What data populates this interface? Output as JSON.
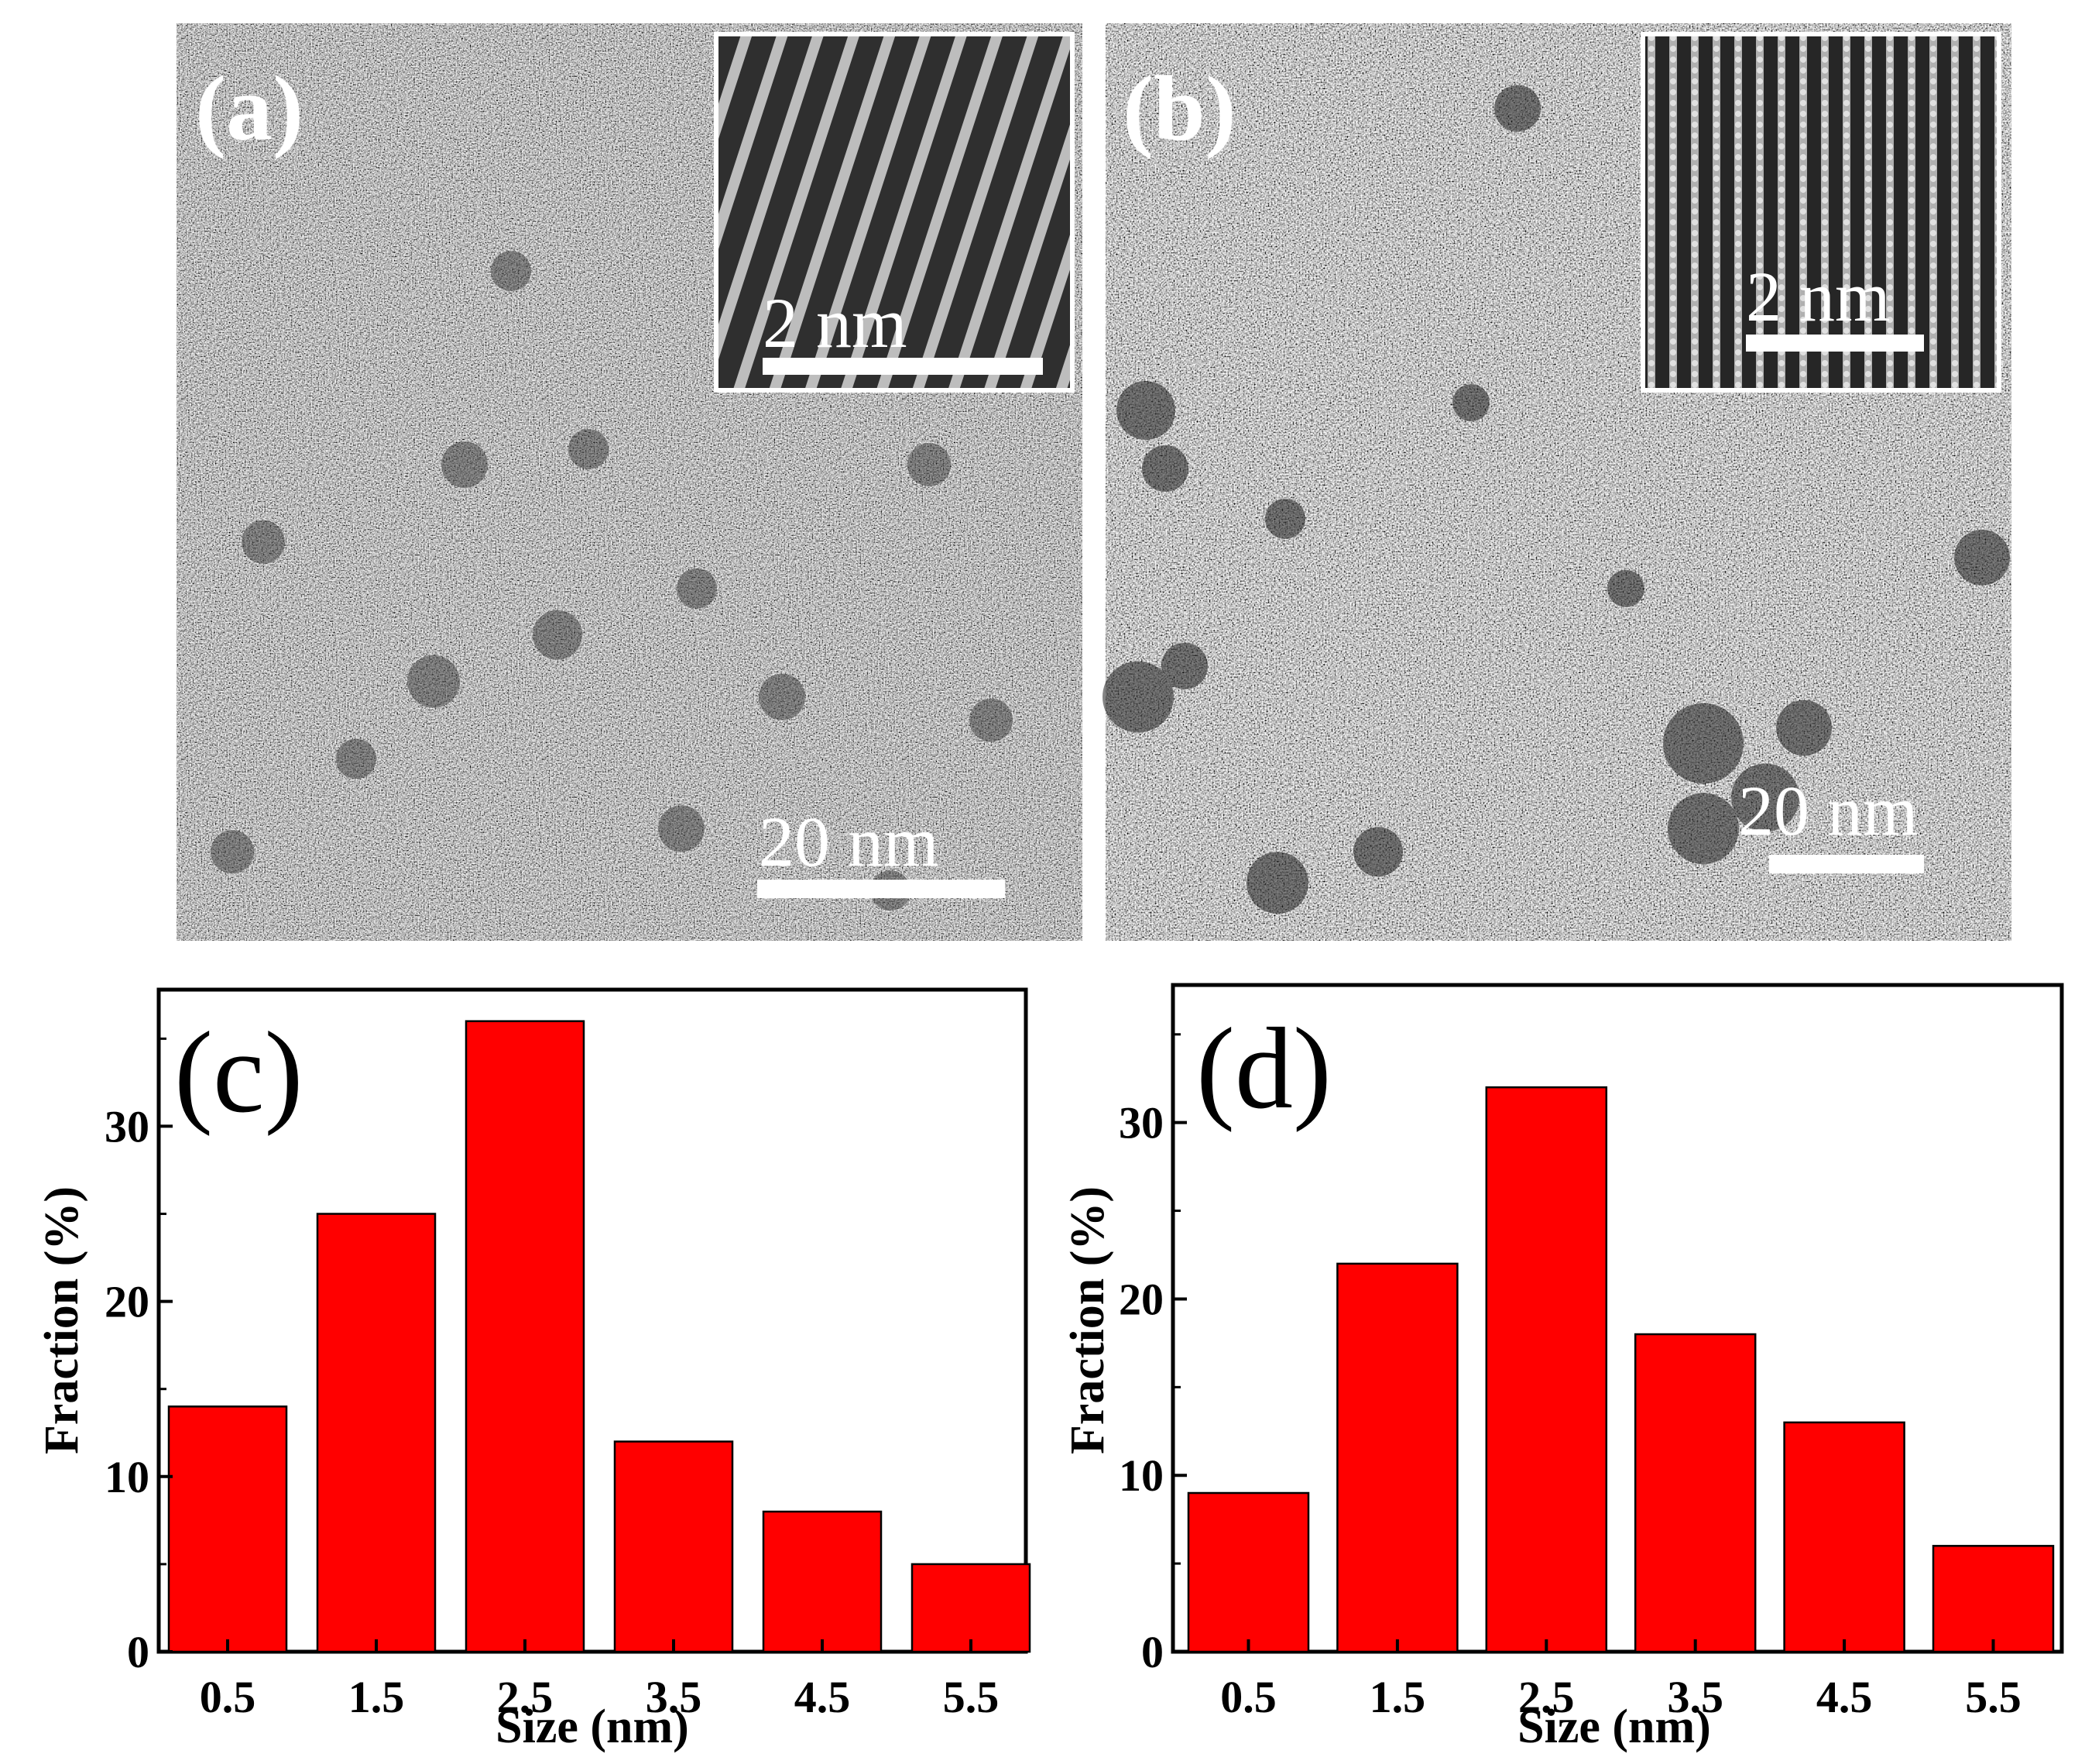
{
  "panels": {
    "a": {
      "label": "(a)",
      "scale_main": "20 nm",
      "scale_inset": "2 nm"
    },
    "b": {
      "label": "(b)",
      "scale_main": "20 nm",
      "scale_inset": "2 nm"
    }
  },
  "colors": {
    "bar": "#ff0000",
    "tem_bg": "#9a9a9a",
    "inset_bg": "#3a3a3a"
  },
  "chart_data": [
    {
      "type": "bar",
      "panel_label": "(c)",
      "categories": [
        "0.5",
        "1.5",
        "2.5",
        "3.5",
        "4.5",
        "5.5"
      ],
      "values": [
        14,
        25,
        36,
        12,
        8,
        5
      ],
      "xlabel": "Size (nm)",
      "ylabel": "Fraction (%)",
      "ylim": [
        0,
        37.8
      ],
      "yticks": [
        "0",
        "10",
        "20",
        "30"
      ]
    },
    {
      "type": "bar",
      "panel_label": "(d)",
      "categories": [
        "0.5",
        "1.5",
        "2.5",
        "3.5",
        "4.5",
        "5.5"
      ],
      "values": [
        9,
        22,
        32,
        18,
        13,
        6
      ],
      "xlabel": "Size (nm)",
      "ylabel": "Fraction (%)",
      "ylim": [
        0,
        37.8
      ],
      "yticks": [
        "0",
        "10",
        "20",
        "30"
      ]
    }
  ]
}
